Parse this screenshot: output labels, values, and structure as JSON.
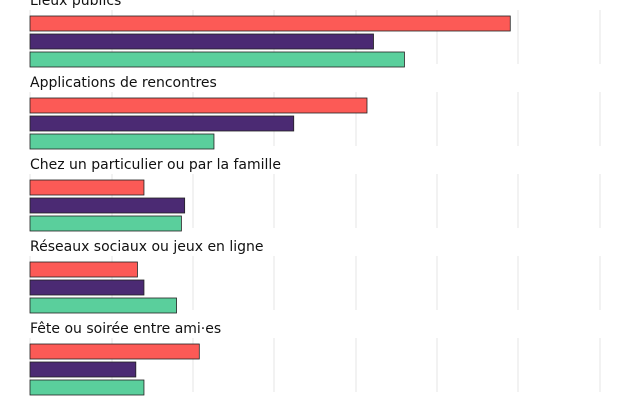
{
  "chart_data": {
    "type": "bar",
    "orientation": "horizontal",
    "categories": [
      "Lieux publics",
      "Applications de rencontres",
      "Chez un particulier ou par la famille",
      "Réseaux sociaux ou jeux en ligne",
      "Fête ou soirée entre ami·es"
    ],
    "series": [
      {
        "color": "#fc5a56",
        "values": [
          29.5,
          20.7,
          7.0,
          6.6,
          10.4
        ]
      },
      {
        "color": "#4b2a73",
        "values": [
          21.1,
          16.2,
          9.5,
          7.0,
          6.5
        ]
      },
      {
        "color": "#5acf9c",
        "values": [
          23.0,
          11.3,
          9.3,
          9.0,
          7.0
        ]
      }
    ],
    "xlim": [
      0,
      35
    ],
    "grid": true,
    "legend": "none",
    "title": "",
    "xlabel": "",
    "ylabel": ""
  }
}
